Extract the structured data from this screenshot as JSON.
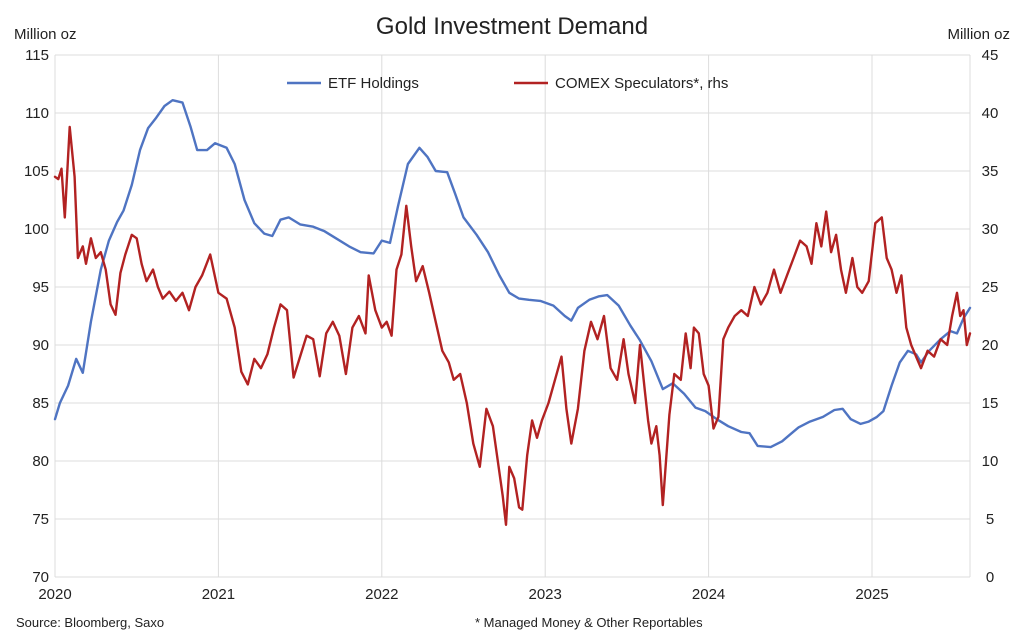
{
  "chart_data": {
    "type": "line",
    "title": "Gold Investment Demand",
    "left_unit": "Million oz",
    "right_unit": "Million oz",
    "x_range": [
      2020.0,
      2025.6
    ],
    "x_ticks": [
      {
        "value": 2020,
        "label": "2020"
      },
      {
        "value": 2021,
        "label": "2021"
      },
      {
        "value": 2022,
        "label": "2022"
      },
      {
        "value": 2023,
        "label": "2023"
      },
      {
        "value": 2024,
        "label": "2024"
      },
      {
        "value": 2025,
        "label": "2025"
      }
    ],
    "y_left": {
      "range": [
        70,
        115
      ],
      "ticks": [
        "70",
        "75",
        "80",
        "85",
        "90",
        "95",
        "100",
        "105",
        "110",
        "115"
      ]
    },
    "y_right": {
      "range": [
        0,
        45
      ],
      "ticks": [
        "0",
        "5",
        "10",
        "15",
        "20",
        "25",
        "30",
        "35",
        "40",
        "45"
      ]
    },
    "grid": true,
    "legend_position": "top-center",
    "series": [
      {
        "name": "ETF Holdings",
        "axis": "left",
        "color": "#4f74c2",
        "points": [
          [
            2020.0,
            83.6
          ],
          [
            2020.03,
            85.0
          ],
          [
            2020.08,
            86.5
          ],
          [
            2020.13,
            88.8
          ],
          [
            2020.17,
            87.6
          ],
          [
            2020.22,
            92.0
          ],
          [
            2020.28,
            96.5
          ],
          [
            2020.33,
            99.0
          ],
          [
            2020.38,
            100.6
          ],
          [
            2020.42,
            101.6
          ],
          [
            2020.47,
            103.8
          ],
          [
            2020.52,
            106.8
          ],
          [
            2020.57,
            108.7
          ],
          [
            2020.62,
            109.6
          ],
          [
            2020.67,
            110.6
          ],
          [
            2020.72,
            111.1
          ],
          [
            2020.78,
            110.9
          ],
          [
            2020.83,
            108.8
          ],
          [
            2020.87,
            106.8
          ],
          [
            2020.93,
            106.8
          ],
          [
            2020.98,
            107.4
          ],
          [
            2021.05,
            107.0
          ],
          [
            2021.1,
            105.6
          ],
          [
            2021.16,
            102.5
          ],
          [
            2021.22,
            100.5
          ],
          [
            2021.28,
            99.6
          ],
          [
            2021.33,
            99.4
          ],
          [
            2021.38,
            100.8
          ],
          [
            2021.43,
            101.0
          ],
          [
            2021.5,
            100.4
          ],
          [
            2021.58,
            100.2
          ],
          [
            2021.65,
            99.8
          ],
          [
            2021.72,
            99.2
          ],
          [
            2021.8,
            98.5
          ],
          [
            2021.87,
            98.0
          ],
          [
            2021.95,
            97.9
          ],
          [
            2022.0,
            99.0
          ],
          [
            2022.05,
            98.8
          ],
          [
            2022.1,
            102.0
          ],
          [
            2022.16,
            105.6
          ],
          [
            2022.23,
            107.0
          ],
          [
            2022.28,
            106.2
          ],
          [
            2022.33,
            105.0
          ],
          [
            2022.4,
            104.9
          ],
          [
            2022.45,
            103.0
          ],
          [
            2022.5,
            101.0
          ],
          [
            2022.58,
            99.5
          ],
          [
            2022.65,
            98.0
          ],
          [
            2022.72,
            96.0
          ],
          [
            2022.78,
            94.5
          ],
          [
            2022.84,
            94.0
          ],
          [
            2022.9,
            93.9
          ],
          [
            2022.97,
            93.8
          ],
          [
            2023.05,
            93.4
          ],
          [
            2023.12,
            92.5
          ],
          [
            2023.16,
            92.1
          ],
          [
            2023.2,
            93.2
          ],
          [
            2023.27,
            93.9
          ],
          [
            2023.33,
            94.2
          ],
          [
            2023.38,
            94.3
          ],
          [
            2023.45,
            93.4
          ],
          [
            2023.52,
            91.7
          ],
          [
            2023.58,
            90.4
          ],
          [
            2023.65,
            88.6
          ],
          [
            2023.72,
            86.2
          ],
          [
            2023.78,
            86.7
          ],
          [
            2023.85,
            85.8
          ],
          [
            2023.92,
            84.6
          ],
          [
            2023.98,
            84.3
          ],
          [
            2024.05,
            83.6
          ],
          [
            2024.12,
            83.0
          ],
          [
            2024.2,
            82.5
          ],
          [
            2024.25,
            82.4
          ],
          [
            2024.3,
            81.3
          ],
          [
            2024.38,
            81.2
          ],
          [
            2024.45,
            81.7
          ],
          [
            2024.5,
            82.3
          ],
          [
            2024.55,
            82.9
          ],
          [
            2024.62,
            83.4
          ],
          [
            2024.7,
            83.8
          ],
          [
            2024.77,
            84.4
          ],
          [
            2024.82,
            84.5
          ],
          [
            2024.87,
            83.6
          ],
          [
            2024.93,
            83.2
          ],
          [
            2024.98,
            83.4
          ],
          [
            2025.03,
            83.8
          ],
          [
            2025.07,
            84.3
          ],
          [
            2025.12,
            86.5
          ],
          [
            2025.17,
            88.5
          ],
          [
            2025.22,
            89.5
          ],
          [
            2025.27,
            89.2
          ],
          [
            2025.3,
            88.5
          ],
          [
            2025.35,
            89.5
          ],
          [
            2025.42,
            90.5
          ],
          [
            2025.48,
            91.2
          ],
          [
            2025.52,
            91.0
          ],
          [
            2025.56,
            92.3
          ],
          [
            2025.6,
            93.2
          ]
        ]
      },
      {
        "name": "COMEX Speculators*, rhs",
        "axis": "right",
        "color": "#b22222",
        "points": [
          [
            2020.0,
            34.5
          ],
          [
            2020.02,
            34.3
          ],
          [
            2020.04,
            35.2
          ],
          [
            2020.06,
            31.0
          ],
          [
            2020.09,
            38.8
          ],
          [
            2020.12,
            34.5
          ],
          [
            2020.14,
            27.5
          ],
          [
            2020.17,
            28.5
          ],
          [
            2020.19,
            27.0
          ],
          [
            2020.22,
            29.2
          ],
          [
            2020.25,
            27.5
          ],
          [
            2020.28,
            28.0
          ],
          [
            2020.31,
            26.5
          ],
          [
            2020.34,
            23.5
          ],
          [
            2020.37,
            22.6
          ],
          [
            2020.4,
            26.2
          ],
          [
            2020.43,
            27.8
          ],
          [
            2020.47,
            29.5
          ],
          [
            2020.5,
            29.2
          ],
          [
            2020.53,
            27.0
          ],
          [
            2020.56,
            25.5
          ],
          [
            2020.6,
            26.5
          ],
          [
            2020.63,
            25.0
          ],
          [
            2020.66,
            24.0
          ],
          [
            2020.7,
            24.6
          ],
          [
            2020.74,
            23.8
          ],
          [
            2020.78,
            24.5
          ],
          [
            2020.82,
            23.0
          ],
          [
            2020.86,
            25.0
          ],
          [
            2020.9,
            26.0
          ],
          [
            2020.95,
            27.8
          ],
          [
            2021.0,
            24.5
          ],
          [
            2021.05,
            24.0
          ],
          [
            2021.1,
            21.5
          ],
          [
            2021.14,
            17.7
          ],
          [
            2021.18,
            16.6
          ],
          [
            2021.22,
            18.8
          ],
          [
            2021.26,
            18.0
          ],
          [
            2021.3,
            19.2
          ],
          [
            2021.34,
            21.5
          ],
          [
            2021.38,
            23.5
          ],
          [
            2021.42,
            23.0
          ],
          [
            2021.46,
            17.2
          ],
          [
            2021.5,
            19.0
          ],
          [
            2021.54,
            20.8
          ],
          [
            2021.58,
            20.5
          ],
          [
            2021.62,
            17.3
          ],
          [
            2021.66,
            21.0
          ],
          [
            2021.7,
            22.0
          ],
          [
            2021.74,
            20.8
          ],
          [
            2021.78,
            17.5
          ],
          [
            2021.82,
            21.5
          ],
          [
            2021.86,
            22.5
          ],
          [
            2021.9,
            21.0
          ],
          [
            2021.92,
            26.0
          ],
          [
            2021.96,
            23.0
          ],
          [
            2022.0,
            21.5
          ],
          [
            2022.03,
            22.0
          ],
          [
            2022.06,
            20.8
          ],
          [
            2022.09,
            26.5
          ],
          [
            2022.12,
            27.8
          ],
          [
            2022.15,
            32.0
          ],
          [
            2022.18,
            28.5
          ],
          [
            2022.21,
            25.5
          ],
          [
            2022.25,
            26.8
          ],
          [
            2022.29,
            24.5
          ],
          [
            2022.33,
            22.0
          ],
          [
            2022.37,
            19.5
          ],
          [
            2022.41,
            18.5
          ],
          [
            2022.44,
            17.0
          ],
          [
            2022.48,
            17.5
          ],
          [
            2022.52,
            15.0
          ],
          [
            2022.56,
            11.5
          ],
          [
            2022.6,
            9.5
          ],
          [
            2022.64,
            14.5
          ],
          [
            2022.68,
            13.0
          ],
          [
            2022.71,
            10.0
          ],
          [
            2022.74,
            7.0
          ],
          [
            2022.76,
            4.5
          ],
          [
            2022.78,
            9.5
          ],
          [
            2022.81,
            8.5
          ],
          [
            2022.84,
            6.0
          ],
          [
            2022.86,
            5.8
          ],
          [
            2022.89,
            10.5
          ],
          [
            2022.92,
            13.5
          ],
          [
            2022.95,
            12.0
          ],
          [
            2022.98,
            13.5
          ],
          [
            2023.02,
            15.0
          ],
          [
            2023.06,
            17.0
          ],
          [
            2023.1,
            19.0
          ],
          [
            2023.13,
            14.5
          ],
          [
            2023.16,
            11.5
          ],
          [
            2023.2,
            14.5
          ],
          [
            2023.24,
            19.5
          ],
          [
            2023.28,
            22.0
          ],
          [
            2023.32,
            20.5
          ],
          [
            2023.36,
            22.5
          ],
          [
            2023.4,
            18.0
          ],
          [
            2023.44,
            17.0
          ],
          [
            2023.48,
            20.5
          ],
          [
            2023.51,
            17.5
          ],
          [
            2023.55,
            15.0
          ],
          [
            2023.58,
            20.0
          ],
          [
            2023.61,
            16.0
          ],
          [
            2023.63,
            13.5
          ],
          [
            2023.65,
            11.5
          ],
          [
            2023.68,
            13.0
          ],
          [
            2023.7,
            10.5
          ],
          [
            2023.72,
            6.2
          ],
          [
            2023.76,
            14.0
          ],
          [
            2023.79,
            17.5
          ],
          [
            2023.83,
            17.0
          ],
          [
            2023.86,
            21.0
          ],
          [
            2023.89,
            18.0
          ],
          [
            2023.91,
            21.5
          ],
          [
            2023.94,
            21.0
          ],
          [
            2023.97,
            17.5
          ],
          [
            2024.0,
            16.5
          ],
          [
            2024.03,
            12.8
          ],
          [
            2024.06,
            13.8
          ],
          [
            2024.09,
            20.5
          ],
          [
            2024.12,
            21.5
          ],
          [
            2024.16,
            22.5
          ],
          [
            2024.2,
            23.0
          ],
          [
            2024.24,
            22.5
          ],
          [
            2024.28,
            25.0
          ],
          [
            2024.32,
            23.5
          ],
          [
            2024.36,
            24.5
          ],
          [
            2024.4,
            26.5
          ],
          [
            2024.44,
            24.5
          ],
          [
            2024.48,
            26.0
          ],
          [
            2024.52,
            27.5
          ],
          [
            2024.56,
            29.0
          ],
          [
            2024.6,
            28.5
          ],
          [
            2024.63,
            27.0
          ],
          [
            2024.66,
            30.5
          ],
          [
            2024.69,
            28.5
          ],
          [
            2024.72,
            31.5
          ],
          [
            2024.75,
            28.0
          ],
          [
            2024.78,
            29.5
          ],
          [
            2024.81,
            26.5
          ],
          [
            2024.84,
            24.5
          ],
          [
            2024.88,
            27.5
          ],
          [
            2024.91,
            25.0
          ],
          [
            2024.94,
            24.5
          ],
          [
            2024.98,
            25.5
          ],
          [
            2025.02,
            30.5
          ],
          [
            2025.06,
            31.0
          ],
          [
            2025.09,
            27.5
          ],
          [
            2025.12,
            26.5
          ],
          [
            2025.15,
            24.5
          ],
          [
            2025.18,
            26.0
          ],
          [
            2025.21,
            21.5
          ],
          [
            2025.24,
            20.0
          ],
          [
            2025.27,
            19.0
          ],
          [
            2025.3,
            18.0
          ],
          [
            2025.34,
            19.5
          ],
          [
            2025.38,
            19.0
          ],
          [
            2025.42,
            20.5
          ],
          [
            2025.46,
            20.0
          ],
          [
            2025.49,
            22.5
          ],
          [
            2025.52,
            24.5
          ],
          [
            2025.54,
            22.5
          ],
          [
            2025.56,
            23.0
          ],
          [
            2025.58,
            20.0
          ],
          [
            2025.6,
            21.0
          ]
        ]
      }
    ]
  },
  "footer": {
    "source": "Source: Bloomberg, Saxo",
    "note": "* Managed Money & Other Reportables"
  }
}
